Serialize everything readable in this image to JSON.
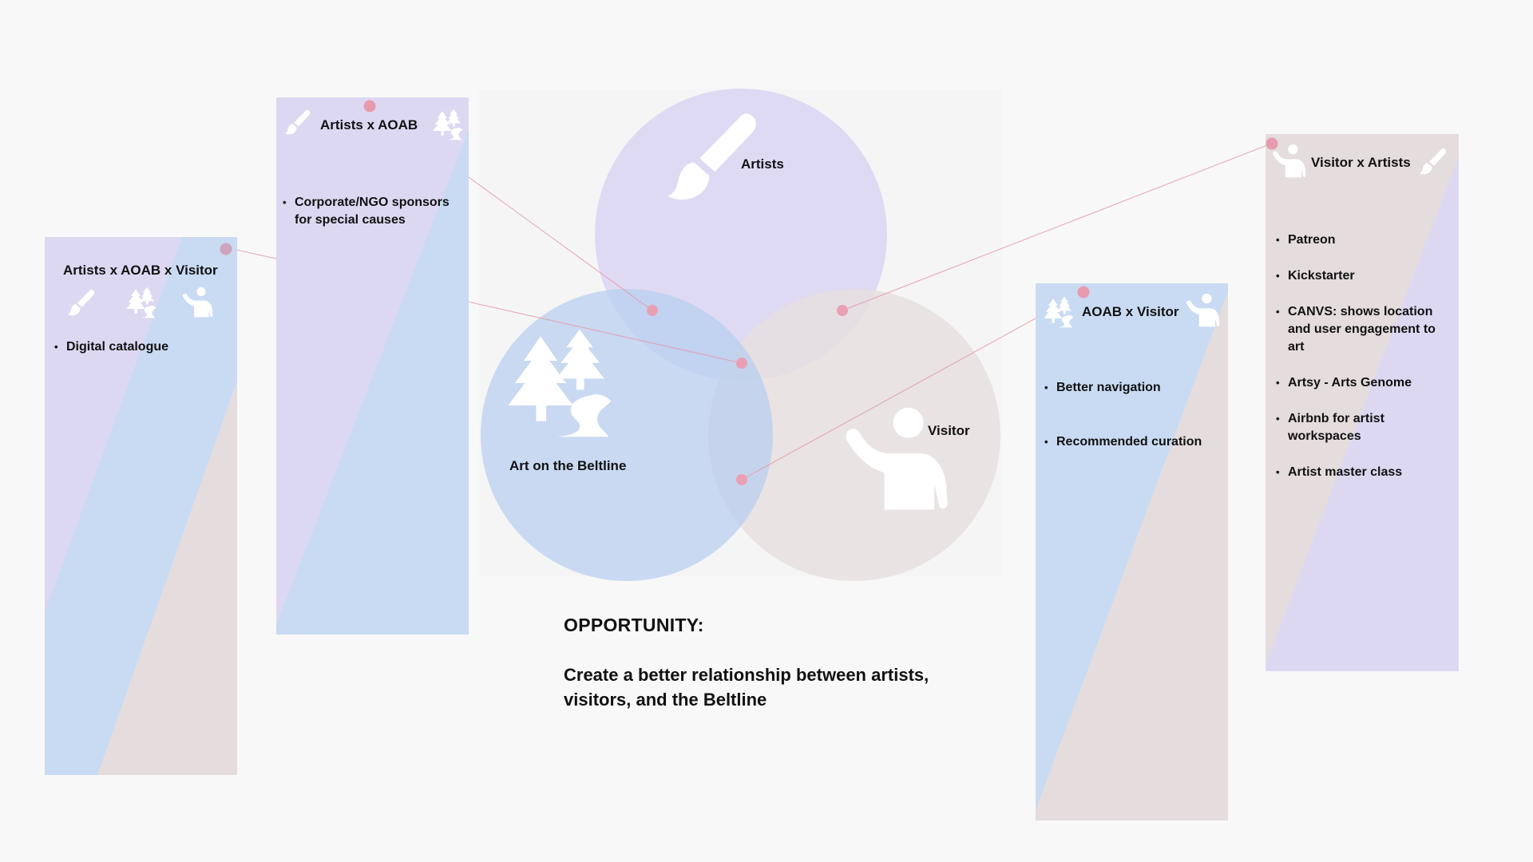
{
  "colors": {
    "background": "#f8f8f8",
    "artists": "#ddd8f2",
    "aoab": "#c6d9f2",
    "visitor": "#e6dfdf",
    "connector": "#e89aae"
  },
  "venn": {
    "artists_label": "Artists",
    "aoab_label": "Art on the Beltline",
    "visitor_label": "Visitor"
  },
  "cards": {
    "all_three": {
      "title": "Artists x AOAB x Visitor",
      "items": [
        "Digital catalogue"
      ]
    },
    "artists_aoab": {
      "title": "Artists x AOAB",
      "items": [
        "Corporate/NGO sponsors for special causes"
      ]
    },
    "aoab_visitor": {
      "title": "AOAB x Visitor",
      "items": [
        "Better navigation",
        "Recommended curation"
      ]
    },
    "visitor_artists": {
      "title": "Visitor x Artists",
      "items": [
        "Patreon",
        "Kickstarter",
        "CANVS: shows location and user engagement to art",
        "Artsy - Arts Genome",
        "Airbnb for artist workspaces",
        "Artist master class"
      ]
    }
  },
  "opportunity": {
    "heading": "OPPORTUNITY:",
    "text": "Create a better relationship between artists, visitors, and the Beltline"
  },
  "icons": [
    "paintbrush-icon",
    "trees-path-icon",
    "visitor-waving-icon"
  ]
}
